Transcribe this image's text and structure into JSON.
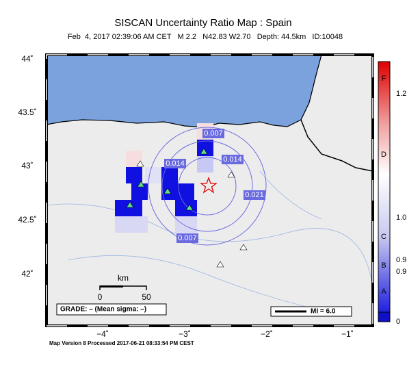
{
  "header": {
    "title": "SISCAN Uncertainty Ratio Map : Spain",
    "subtitle": "Feb  4, 2017 02:39:06 AM CET   M 2.2   N42.83 W2.70   Depth: 44.5km   ID:10048"
  },
  "lat_labels": [
    "44˚",
    "43.5˚",
    "43˚",
    "42.5˚",
    "42˚"
  ],
  "lon_labels": [
    "−4˚",
    "−3˚",
    "−2˚",
    "−1˚"
  ],
  "contour_labels": [
    "0.007",
    "0.014",
    "0.014",
    "0.021",
    "0.007"
  ],
  "scale_bar": {
    "unit": "km",
    "start": "0",
    "end": "50"
  },
  "grade": "GRADE: – (Mean sigma: –)",
  "mi_legend": "MI = 6.0",
  "colorbar": {
    "letters": [
      "F",
      "D",
      "C",
      "B",
      "A"
    ],
    "values": [
      "1.2",
      "1.0",
      "0.9",
      "0.9",
      "0"
    ]
  },
  "footer": "Map Version 8 Processed 2017-06-21 08:33:54 PM CEST"
}
